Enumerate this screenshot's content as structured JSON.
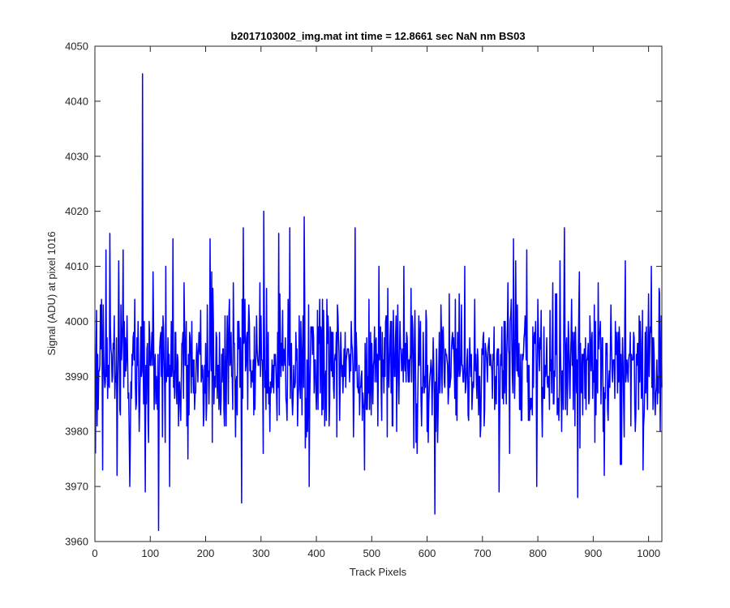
{
  "chart_data": {
    "type": "line",
    "title": "b2017103002_img.mat int time = 12.8661 sec  NaN nm BS03",
    "xlabel": "Track Pixels",
    "ylabel": "Signal (ADU) at pixel 1016",
    "xlim": [
      0,
      1024
    ],
    "ylim": [
      3960,
      4050
    ],
    "xticks": [
      0,
      100,
      200,
      300,
      400,
      500,
      600,
      700,
      800,
      900,
      1000
    ],
    "yticks": [
      3960,
      3970,
      3980,
      3990,
      4000,
      4010,
      4020,
      4030,
      4040,
      4050
    ],
    "grid": false,
    "line_color": "#0000ff",
    "noise": {
      "points": 1024,
      "mean": 3992,
      "spread": 6.5,
      "min": 3966,
      "max": 4019
    },
    "series": [
      {
        "values_sampled": [
          {
            "x": 1,
            "y": 3976
          },
          {
            "x": 5,
            "y": 3994
          },
          {
            "x": 10,
            "y": 4003
          },
          {
            "x": 14,
            "y": 3973
          },
          {
            "x": 20,
            "y": 4013
          },
          {
            "x": 27,
            "y": 4016
          },
          {
            "x": 40,
            "y": 3972
          },
          {
            "x": 51,
            "y": 4013
          },
          {
            "x": 63,
            "y": 3970
          },
          {
            "x": 72,
            "y": 4004
          },
          {
            "x": 80,
            "y": 3980
          },
          {
            "x": 86,
            "y": 4045
          },
          {
            "x": 91,
            "y": 3969
          },
          {
            "x": 105,
            "y": 4009
          },
          {
            "x": 115,
            "y": 3962
          },
          {
            "x": 128,
            "y": 4010
          },
          {
            "x": 135,
            "y": 3970
          },
          {
            "x": 141,
            "y": 4015
          },
          {
            "x": 168,
            "y": 3975
          },
          {
            "x": 211,
            "y": 4009
          },
          {
            "x": 265,
            "y": 3967
          },
          {
            "x": 268,
            "y": 4017
          },
          {
            "x": 305,
            "y": 4020
          },
          {
            "x": 332,
            "y": 4016
          },
          {
            "x": 352,
            "y": 4017
          },
          {
            "x": 378,
            "y": 4019
          },
          {
            "x": 387,
            "y": 3970
          },
          {
            "x": 411,
            "y": 4004
          },
          {
            "x": 470,
            "y": 4017
          },
          {
            "x": 513,
            "y": 4010
          },
          {
            "x": 571,
            "y": 4006
          },
          {
            "x": 614,
            "y": 3965
          },
          {
            "x": 668,
            "y": 4010
          },
          {
            "x": 686,
            "y": 4004
          },
          {
            "x": 730,
            "y": 3969
          },
          {
            "x": 756,
            "y": 4015
          },
          {
            "x": 798,
            "y": 3970
          },
          {
            "x": 827,
            "y": 4007
          },
          {
            "x": 840,
            "y": 4011
          },
          {
            "x": 848,
            "y": 4017
          },
          {
            "x": 872,
            "y": 3968
          },
          {
            "x": 920,
            "y": 3972
          },
          {
            "x": 958,
            "y": 4011
          },
          {
            "x": 990,
            "y": 3973
          },
          {
            "x": 1005,
            "y": 4010
          },
          {
            "x": 1016,
            "y": 3985
          },
          {
            "x": 1024,
            "y": 3988
          }
        ]
      }
    ]
  }
}
